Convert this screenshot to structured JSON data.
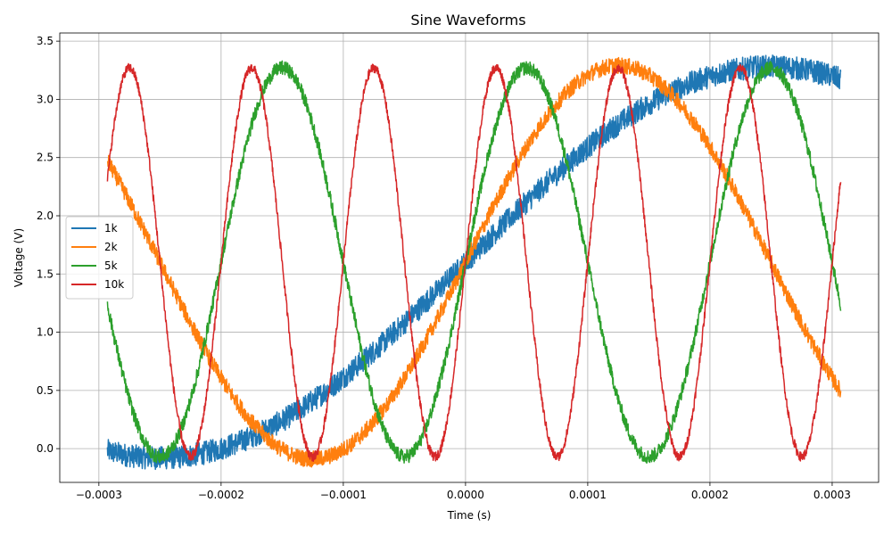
{
  "chart_data": {
    "type": "line",
    "title": "Sine Waveforms",
    "xlabel": "Time (s)",
    "ylabel": "Voltage (V)",
    "xlim": [
      -0.000332,
      0.000338
    ],
    "ylim": [
      -0.29,
      3.57
    ],
    "grid": true,
    "legend_position": "center-left",
    "x_ticks": [
      -0.0003,
      -0.0002,
      -0.0001,
      0.0,
      0.0001,
      0.0002,
      0.0003
    ],
    "x_tick_labels": [
      "−0.0003",
      "−0.0002",
      "−0.0001",
      "0.0000",
      "0.0001",
      "0.0002",
      "0.0003"
    ],
    "y_ticks": [
      0.0,
      0.5,
      1.0,
      1.5,
      2.0,
      2.5,
      3.0,
      3.5
    ],
    "y_tick_labels": [
      "0.0",
      "0.5",
      "1.0",
      "1.5",
      "2.0",
      "2.5",
      "3.0",
      "3.5"
    ],
    "x_range": [
      -0.000293,
      0.000307
    ],
    "series": [
      {
        "name": "1k",
        "color": "#1f77b4",
        "frequency_hz": 1000,
        "offset": 1.6,
        "amplitude": 1.68,
        "noise_band": 0.2
      },
      {
        "name": "2k",
        "color": "#ff7f0e",
        "frequency_hz": 2000,
        "offset": 1.6,
        "amplitude": 1.69,
        "noise_band": 0.14
      },
      {
        "name": "5k",
        "color": "#2ca02c",
        "frequency_hz": 5000,
        "offset": 1.6,
        "amplitude": 1.67,
        "noise_band": 0.12
      },
      {
        "name": "10k",
        "color": "#d62728",
        "frequency_hz": 10000,
        "offset": 1.6,
        "amplitude": 1.67,
        "noise_band": 0.08
      }
    ]
  }
}
